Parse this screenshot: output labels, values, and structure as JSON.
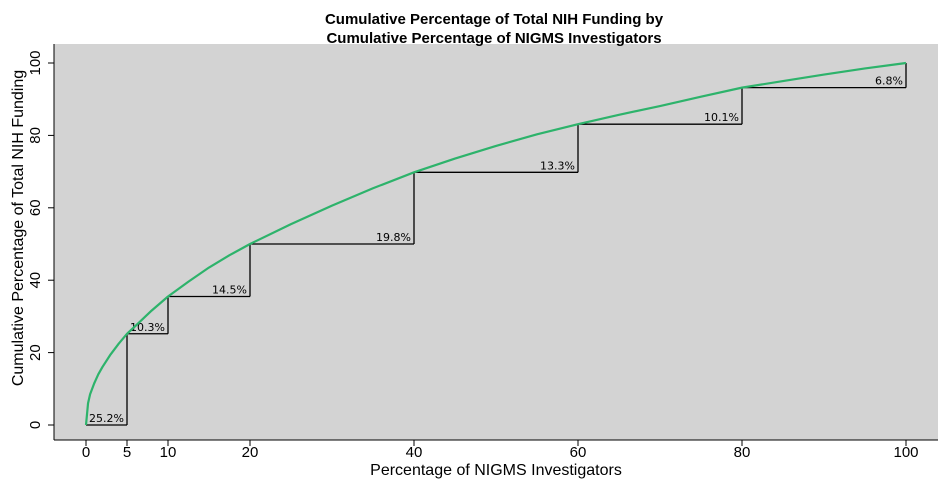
{
  "chart_data": {
    "type": "line",
    "title_line1": "Cumulative  Percentage of Total NIH Funding by",
    "title_line2": "Cumulative Percentage of NIGMS Investigators",
    "xlabel": "Percentage of NIGMS Investigators",
    "ylabel": "Cumulative Percentage of Total NIH Funding",
    "xlim": [
      0,
      100
    ],
    "ylim": [
      0,
      100
    ],
    "x_ticks": [
      0,
      5,
      10,
      20,
      40,
      60,
      80,
      100
    ],
    "y_ticks": [
      0,
      20,
      40,
      60,
      80,
      100
    ],
    "grid": false,
    "background_color": "#d3d3d3",
    "curve_color": "#2db36b",
    "step_color": "#000000",
    "curve": {
      "x": [
        0,
        0.25,
        0.5,
        1,
        1.5,
        2,
        3,
        4,
        5,
        6,
        8,
        10,
        12.5,
        15,
        17.5,
        20,
        25,
        30,
        35,
        40,
        45,
        50,
        55,
        60,
        65,
        70,
        75,
        80,
        85,
        90,
        95,
        100
      ],
      "y": [
        0,
        6,
        8.5,
        11.5,
        14,
        16,
        19.5,
        22.5,
        25.2,
        27.3,
        31.6,
        35.5,
        39.6,
        43.5,
        46.9,
        50.0,
        55.5,
        60.6,
        65.4,
        69.8,
        73.6,
        77.1,
        80.3,
        83.1,
        85.7,
        88.1,
        90.7,
        93.2,
        95.0,
        96.8,
        98.5,
        100
      ]
    },
    "steps": [
      {
        "x0": 0,
        "x1": 5,
        "y": 0,
        "y_next": 25.2,
        "label": "25.2%"
      },
      {
        "x0": 5,
        "x1": 10,
        "y": 25.2,
        "y_next": 35.5,
        "label": "10.3%"
      },
      {
        "x0": 10,
        "x1": 20,
        "y": 35.5,
        "y_next": 50.0,
        "label": "14.5%"
      },
      {
        "x0": 20,
        "x1": 40,
        "y": 50.0,
        "y_next": 69.8,
        "label": "19.8%"
      },
      {
        "x0": 40,
        "x1": 60,
        "y": 69.8,
        "y_next": 83.1,
        "label": "13.3%"
      },
      {
        "x0": 60,
        "x1": 80,
        "y": 83.1,
        "y_next": 93.2,
        "label": "10.1%"
      },
      {
        "x0": 80,
        "x1": 100,
        "y": 93.2,
        "y_next": 100,
        "label": "6.8%"
      }
    ]
  }
}
